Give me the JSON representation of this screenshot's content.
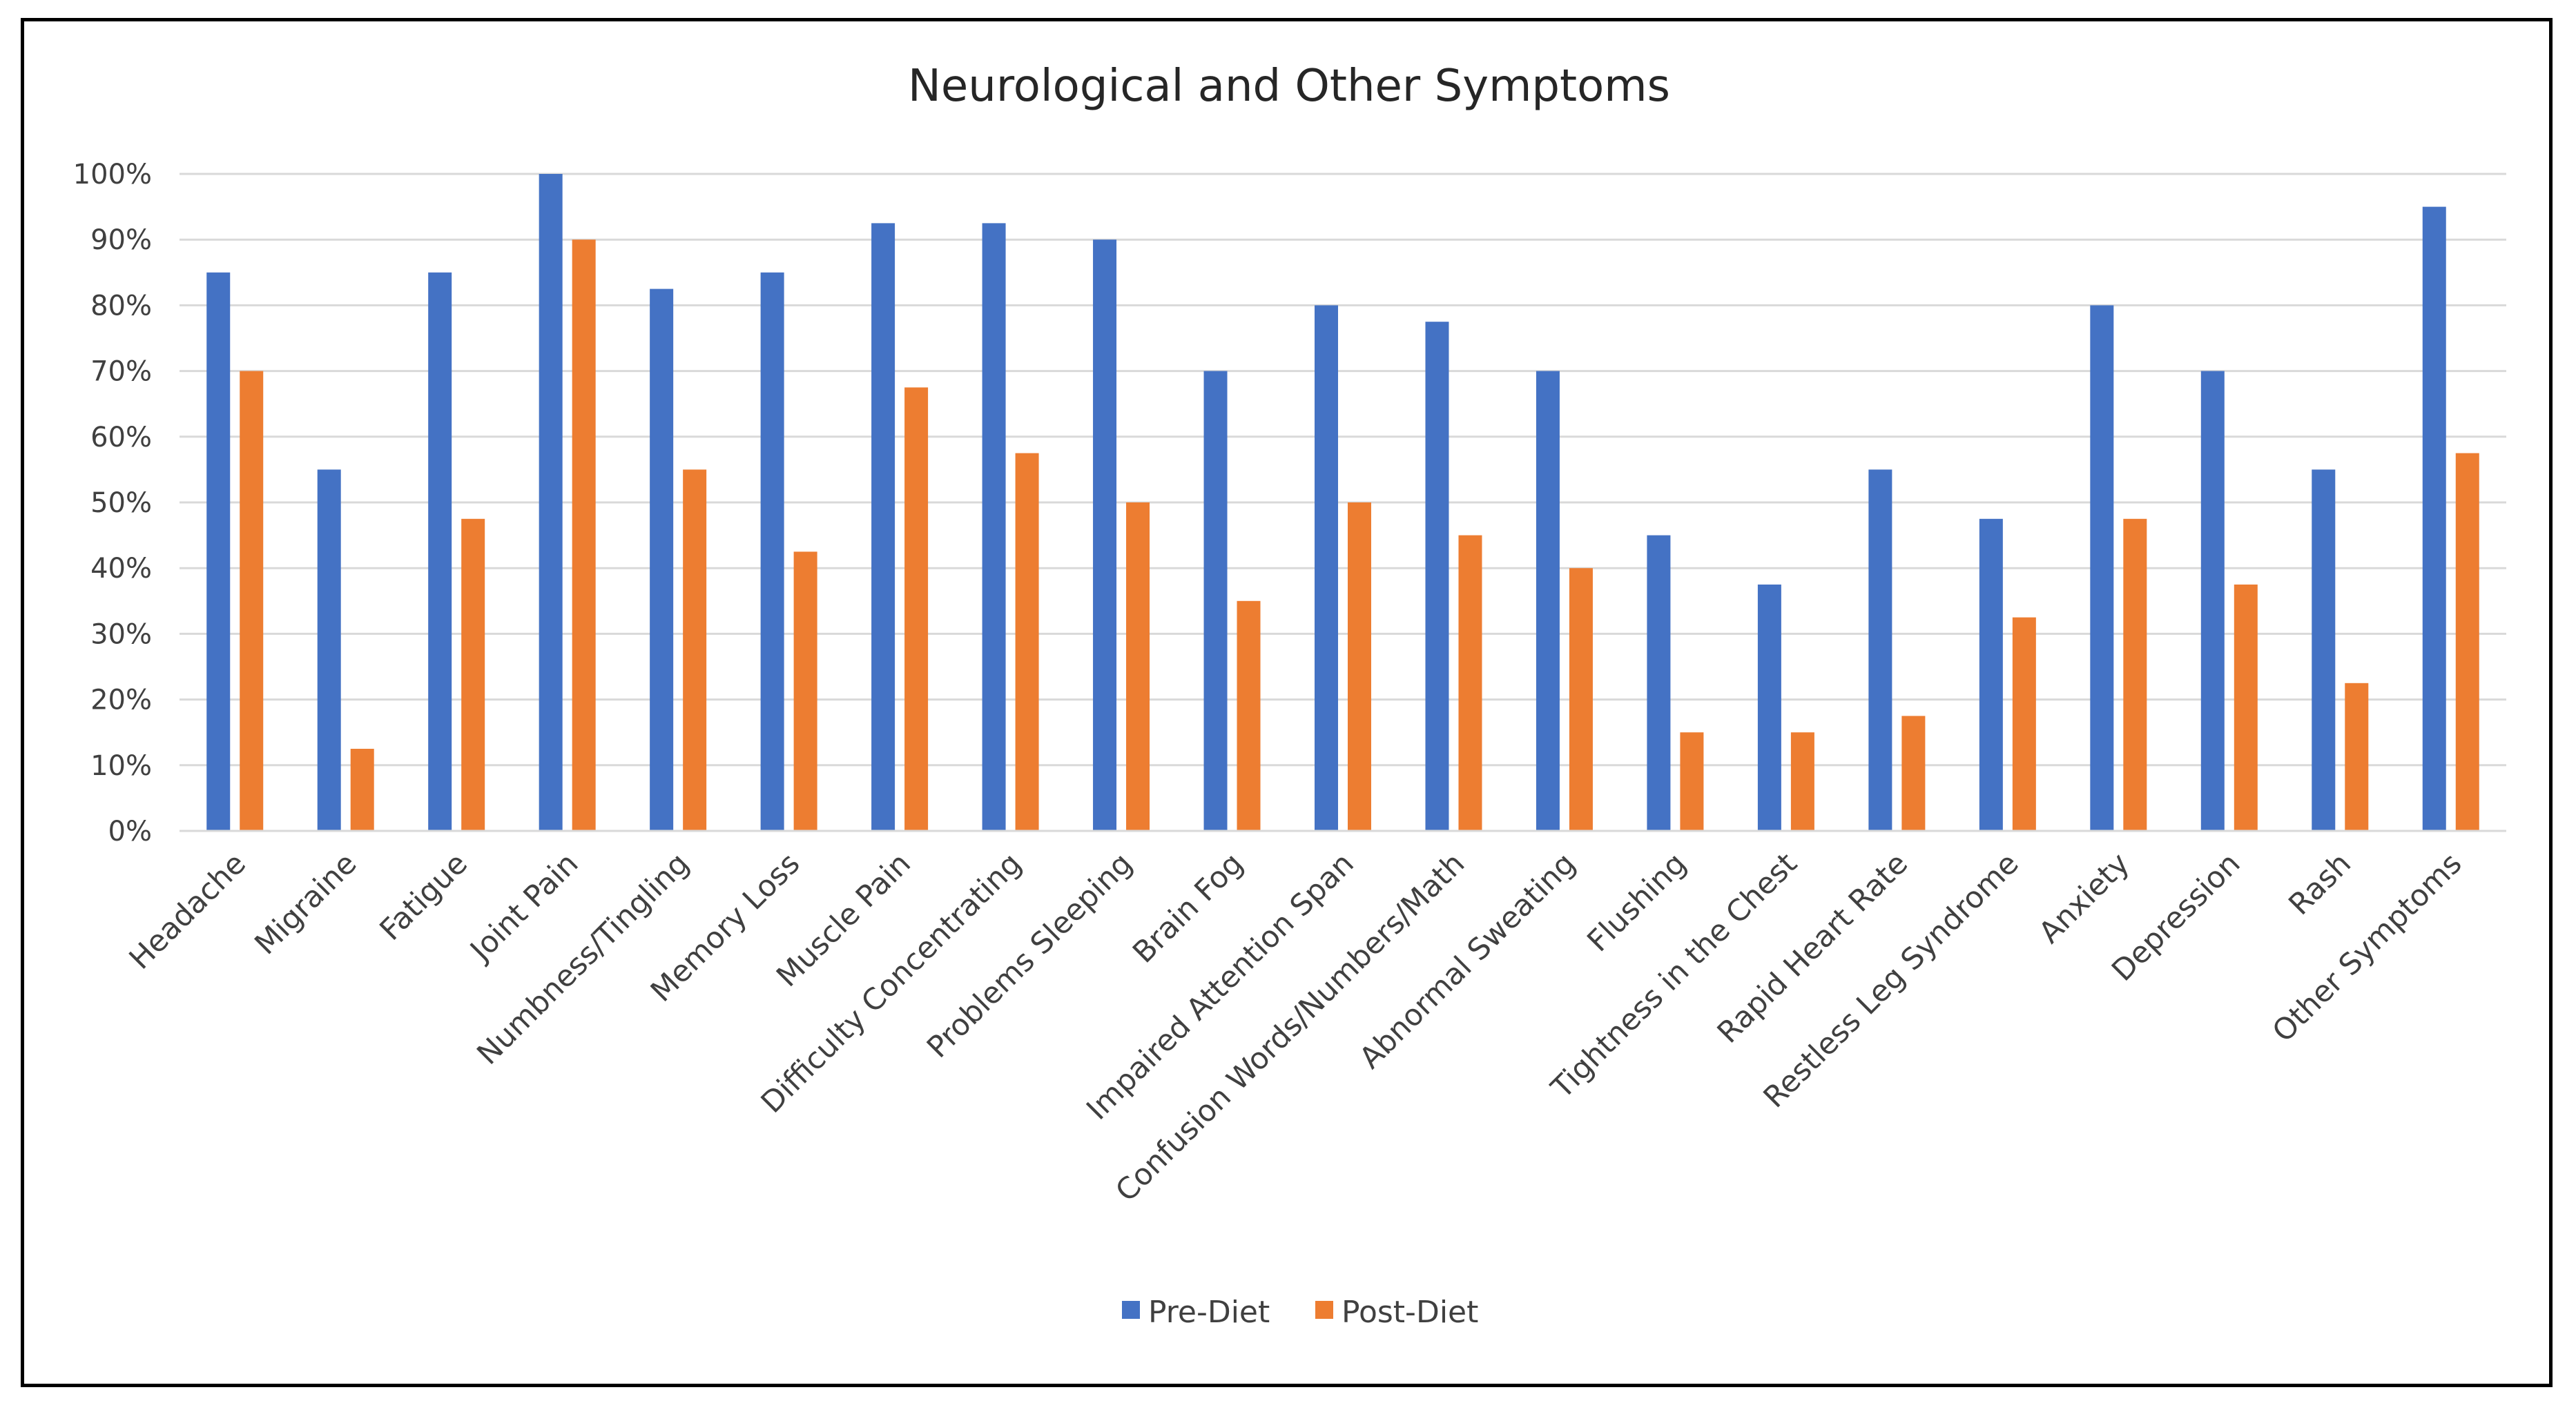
{
  "chart_data": {
    "type": "bar",
    "title": "Neurological and Other Symptoms",
    "xlabel": "",
    "ylabel": "",
    "ylim": [
      0,
      100
    ],
    "y_ticks": [
      "0%",
      "10%",
      "20%",
      "30%",
      "40%",
      "50%",
      "60%",
      "70%",
      "80%",
      "90%",
      "100%"
    ],
    "grid": true,
    "legend_position": "bottom",
    "categories": [
      "Headache",
      "Migraine",
      "Fatigue",
      "Joint Pain",
      "Numbness/Tingling",
      "Memory Loss",
      "Muscle Pain",
      "Difficulty Concentrating",
      "Problems Sleeping",
      "Brain Fog",
      "Impaired Attention Span",
      "Confusion Words/Numbers/Math",
      "Abnormal Sweating",
      "Flushing",
      "Tightness in the Chest",
      "Rapid Heart Rate",
      "Restless Leg Syndrome",
      "Anxiety",
      "Depression",
      "Rash",
      "Other Symptoms"
    ],
    "series": [
      {
        "name": "Pre-Diet",
        "color": "#4472C4",
        "values": [
          85,
          55,
          85,
          100,
          82.5,
          85,
          92.5,
          92.5,
          90,
          70,
          80,
          77.5,
          70,
          45,
          37.5,
          55,
          47.5,
          80,
          70,
          55,
          95
        ]
      },
      {
        "name": "Post-Diet",
        "color": "#ED7D31",
        "values": [
          70,
          12.5,
          47.5,
          90,
          55,
          42.5,
          67.5,
          57.5,
          50,
          35,
          50,
          45,
          40,
          15,
          15,
          17.5,
          32.5,
          47.5,
          37.5,
          22.5,
          57.5
        ]
      }
    ]
  }
}
